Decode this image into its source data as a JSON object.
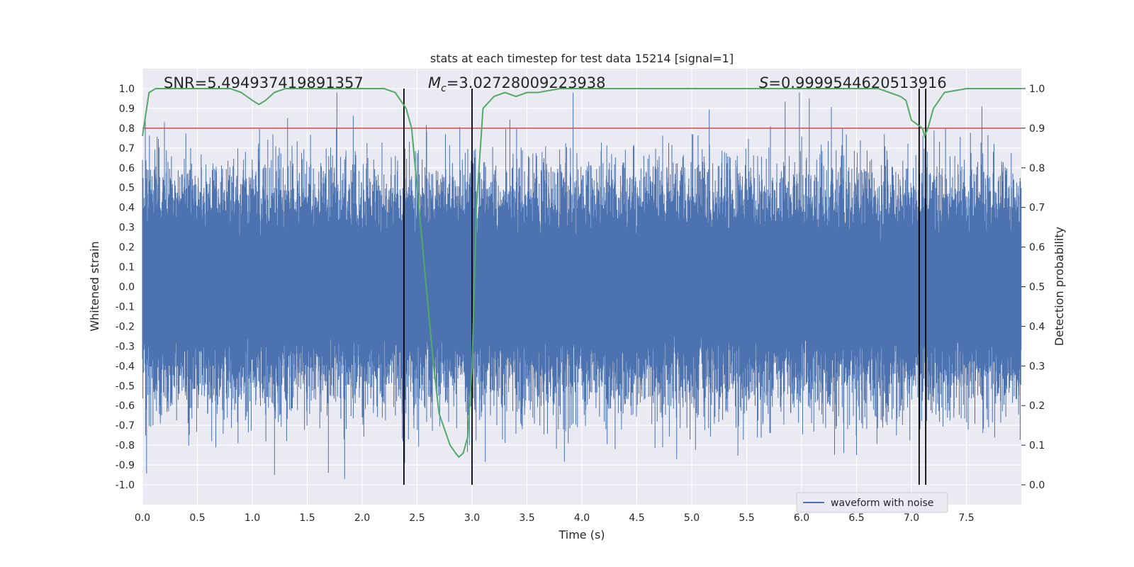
{
  "chart_data": {
    "type": "line",
    "title": "stats at each timestep for test data 15214 [signal=1]",
    "xlabel": "Time (s)",
    "ylabel": "Whitened strain",
    "ylabel_right": "Detection probability",
    "xlim": [
      0.0,
      8.0
    ],
    "ylim": [
      -1.1,
      1.1
    ],
    "ylim_right": [
      -0.05,
      1.05
    ],
    "x_ticks": [
      "0.0",
      "0.5",
      "1.0",
      "1.5",
      "2.0",
      "2.5",
      "3.0",
      "3.5",
      "4.0",
      "4.5",
      "5.0",
      "5.5",
      "6.0",
      "6.5",
      "7.0",
      "7.5"
    ],
    "y_ticks": [
      "1.0",
      "0.9",
      "0.8",
      "0.7",
      "0.6",
      "0.5",
      "0.4",
      "0.3",
      "0.2",
      "0.1",
      "0.0",
      "-0.1",
      "-0.2",
      "-0.3",
      "-0.4",
      "-0.5",
      "-0.6",
      "-0.7",
      "-0.8",
      "-0.9",
      "-1.0"
    ],
    "y_right_ticks": [
      "1.0",
      "0.9",
      "0.8",
      "0.7",
      "0.6",
      "0.5",
      "0.4",
      "0.3",
      "0.2",
      "0.1",
      "0.0"
    ],
    "annotations": {
      "snr": "SNR=5.494937419891357",
      "mc_symbol": "M",
      "mc_sub": "c",
      "mc_value": "=3.02728009223938",
      "s_symbol": "S",
      "s_value": "=0.9999544620513916"
    },
    "threshold": {
      "value": 0.9,
      "axis": "right",
      "color": "#c44e52"
    },
    "vertical_lines": [
      2.38,
      3.0,
      7.07,
      7.13
    ],
    "vline_range_right": [
      0.0,
      1.0
    ],
    "legend": {
      "label": "waveform with noise",
      "position": "lower-right"
    },
    "series": [
      {
        "name": "waveform with noise",
        "axis": "left",
        "color": "#4c72b0",
        "kind": "noise",
        "x_range": [
          0.0,
          8.0
        ],
        "typical_amplitude": 0.4,
        "notable_peaks": [
          {
            "x": 0.2,
            "y": 0.83
          },
          {
            "x": 1.77,
            "y": 0.98
          },
          {
            "x": 1.84,
            "y": -0.97
          },
          {
            "x": 3.92,
            "y": 0.98
          },
          {
            "x": 5.98,
            "y": 0.98
          },
          {
            "x": 6.07,
            "y": 0.95
          },
          {
            "x": 6.5,
            "y": -0.85
          },
          {
            "x": 2.37,
            "y": -0.78
          },
          {
            "x": 0.87,
            "y": -0.79
          }
        ]
      },
      {
        "name": "detection probability",
        "axis": "right",
        "color": "#55a868",
        "x": [
          0.0,
          0.06,
          0.12,
          0.2,
          0.5,
          0.8,
          0.9,
          1.0,
          1.06,
          1.12,
          1.2,
          1.3,
          1.5,
          2.0,
          2.2,
          2.3,
          2.4,
          2.45,
          2.5,
          2.6,
          2.65,
          2.7,
          2.75,
          2.8,
          2.85,
          2.88,
          2.92,
          2.96,
          3.0,
          3.04,
          3.1,
          3.2,
          3.3,
          3.4,
          3.5,
          3.6,
          3.8,
          4.0,
          5.0,
          6.0,
          6.5,
          6.7,
          6.8,
          6.9,
          6.95,
          7.0,
          7.05,
          7.1,
          7.12,
          7.15,
          7.2,
          7.3,
          7.5,
          8.0
        ],
        "y": [
          0.88,
          0.99,
          1.0,
          1.0,
          1.0,
          1.0,
          0.99,
          0.97,
          0.96,
          0.97,
          0.99,
          1.0,
          1.0,
          1.0,
          1.0,
          0.99,
          0.95,
          0.9,
          0.75,
          0.45,
          0.3,
          0.18,
          0.14,
          0.1,
          0.08,
          0.07,
          0.08,
          0.12,
          0.3,
          0.7,
          0.95,
          0.98,
          0.99,
          0.98,
          0.99,
          0.99,
          1.0,
          1.0,
          1.0,
          1.0,
          1.0,
          1.0,
          0.99,
          0.98,
          0.97,
          0.92,
          0.91,
          0.9,
          0.88,
          0.9,
          0.95,
          0.99,
          1.0,
          1.0
        ]
      }
    ]
  }
}
